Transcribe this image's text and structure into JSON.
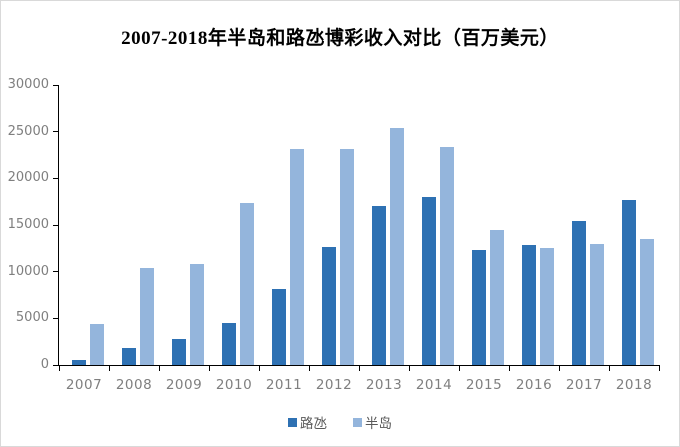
{
  "chart_data": {
    "type": "bar",
    "title": "2007-2018年半岛和路氹博彩收入对比（百万美元）",
    "categories": [
      "2007",
      "2008",
      "2009",
      "2010",
      "2011",
      "2012",
      "2013",
      "2014",
      "2015",
      "2016",
      "2017",
      "2018"
    ],
    "series": [
      {
        "name": "路氹",
        "color": "#2e71b3",
        "values": [
          500,
          1800,
          2750,
          4500,
          8200,
          12700,
          17050,
          18000,
          12350,
          12900,
          15450,
          17700
        ]
      },
      {
        "name": "半岛",
        "color": "#94b5dc",
        "values": [
          4350,
          10450,
          10800,
          17400,
          23150,
          23150,
          25450,
          23400,
          14500,
          12500,
          13000,
          13500
        ]
      }
    ],
    "xlabel": "",
    "ylabel": "",
    "ylim": [
      0,
      30000
    ],
    "yticks": [
      "0",
      "5000",
      "10000",
      "15000",
      "20000",
      "25000",
      "30000"
    ],
    "grid": false,
    "legend_position": "bottom",
    "colors": {
      "axis": "#000000",
      "tick_label": "#7f7f7f",
      "legend_text": "#595959",
      "title_text": "#000000",
      "frame_border": "#d9d9d9",
      "background": "#ffffff"
    }
  }
}
